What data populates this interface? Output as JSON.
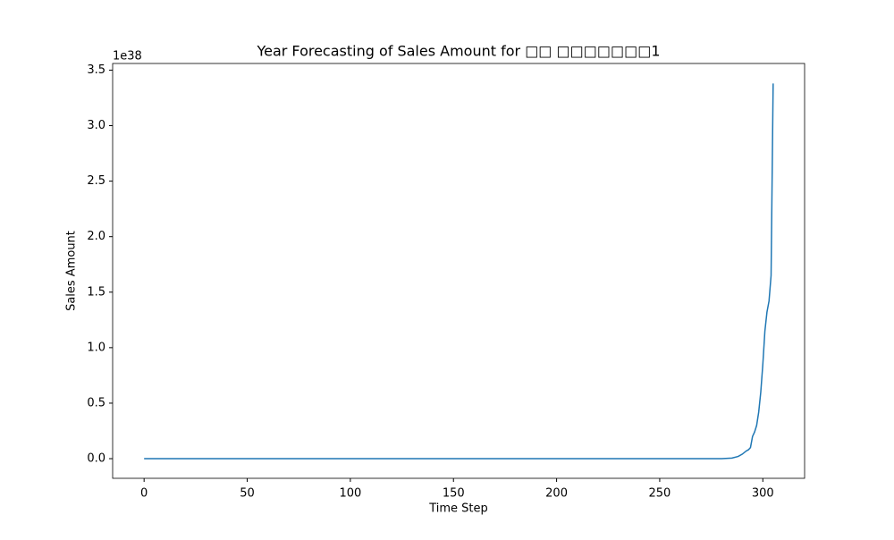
{
  "chart_data": {
    "type": "line",
    "title": "Year Forecasting of Sales Amount for □□ □□□□□□□1",
    "xlabel": "Time Step",
    "ylabel": "Sales Amount",
    "y_offset_label": "1e38",
    "x": [
      0,
      280,
      285,
      288,
      290,
      292,
      293,
      294,
      295,
      296,
      297,
      298,
      299,
      300,
      301,
      302,
      303,
      304,
      305
    ],
    "series": [
      {
        "name": "Sales Amount",
        "color": "#1f77b4",
        "values": [
          0,
          0,
          0.005,
          0.02,
          0.04,
          0.07,
          0.08,
          0.1,
          0.2,
          0.24,
          0.3,
          0.42,
          0.6,
          0.85,
          1.15,
          1.32,
          1.42,
          1.65,
          3.38
        ]
      }
    ],
    "xlim": [
      -15.25,
      320.25
    ],
    "ylim": [
      -0.177,
      3.56
    ],
    "xticks": [
      0,
      50,
      100,
      150,
      200,
      250,
      300
    ],
    "yticks": [
      {
        "value": 0,
        "label": "0.0"
      },
      0.5,
      {
        "value": 1,
        "label": "1.0"
      },
      1.5,
      {
        "value": 2,
        "label": "2.0"
      },
      2.5,
      {
        "value": 3,
        "label": "3.0"
      },
      3.5
    ]
  }
}
